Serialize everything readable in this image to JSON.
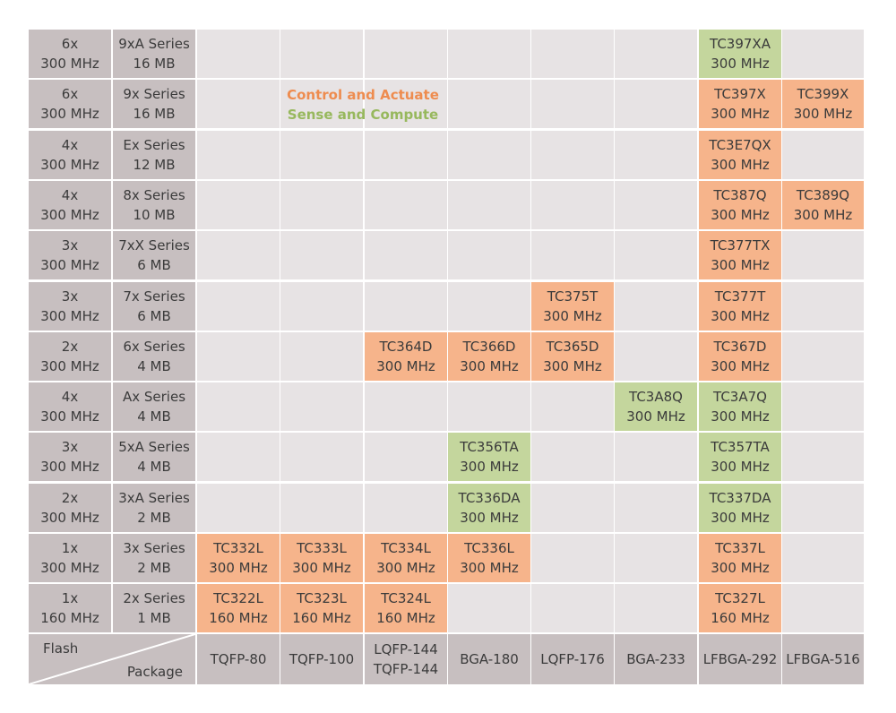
{
  "chart_data": {
    "type": "table",
    "legend": {
      "control": "Control and Actuate",
      "sense": "Sense and Compute"
    },
    "corner": {
      "row_axis": "Flash",
      "col_axis": "Package"
    },
    "packages": [
      [
        "TQFP-80"
      ],
      [
        "TQFP-100"
      ],
      [
        "LQFP-144",
        "TQFP-144"
      ],
      [
        "BGA-180"
      ],
      [
        "LQFP-176"
      ],
      [
        "BGA-233"
      ],
      [
        "LFBGA-292"
      ],
      [
        "LFBGA-516"
      ]
    ],
    "rows": [
      {
        "cores": "6x",
        "freq": "300 MHz",
        "series": "9xA Series",
        "flash": "16 MB",
        "cells": [
          null,
          null,
          null,
          null,
          null,
          null,
          {
            "name": "TC397XA",
            "freq": "300 MHz",
            "type": "sense"
          },
          null
        ]
      },
      {
        "cores": "6x",
        "freq": "300 MHz",
        "series": "9x Series",
        "flash": "16 MB",
        "cells": [
          null,
          null,
          null,
          null,
          null,
          null,
          {
            "name": "TC397X",
            "freq": "300 MHz",
            "type": "control"
          },
          {
            "name": "TC399X",
            "freq": "300 MHz",
            "type": "control"
          }
        ]
      },
      {
        "cores": "4x",
        "freq": "300 MHz",
        "series": "Ex Series",
        "flash": "12 MB",
        "cells": [
          null,
          null,
          null,
          null,
          null,
          null,
          {
            "name": "TC3E7QX",
            "freq": "300 MHz",
            "type": "control"
          },
          null
        ]
      },
      {
        "cores": "4x",
        "freq": "300 MHz",
        "series": "8x Series",
        "flash": "10 MB",
        "cells": [
          null,
          null,
          null,
          null,
          null,
          null,
          {
            "name": "TC387Q",
            "freq": "300 MHz",
            "type": "control"
          },
          {
            "name": "TC389Q",
            "freq": "300 MHz",
            "type": "control"
          }
        ]
      },
      {
        "cores": "3x",
        "freq": "300 MHz",
        "series": "7xX Series",
        "flash": "6 MB",
        "cells": [
          null,
          null,
          null,
          null,
          null,
          null,
          {
            "name": "TC377TX",
            "freq": "300 MHz",
            "type": "control"
          },
          null
        ]
      },
      {
        "cores": "3x",
        "freq": "300 MHz",
        "series": "7x Series",
        "flash": "6 MB",
        "cells": [
          null,
          null,
          null,
          null,
          {
            "name": "TC375T",
            "freq": "300 MHz",
            "type": "control"
          },
          null,
          {
            "name": "TC377T",
            "freq": "300 MHz",
            "type": "control"
          },
          null
        ]
      },
      {
        "cores": "2x",
        "freq": "300 MHz",
        "series": "6x Series",
        "flash": "4 MB",
        "cells": [
          null,
          null,
          {
            "name": "TC364D",
            "freq": "300 MHz",
            "type": "control"
          },
          {
            "name": "TC366D",
            "freq": "300 MHz",
            "type": "control"
          },
          {
            "name": "TC365D",
            "freq": "300 MHz",
            "type": "control"
          },
          null,
          {
            "name": "TC367D",
            "freq": "300 MHz",
            "type": "control"
          },
          null
        ]
      },
      {
        "cores": "4x",
        "freq": "300 MHz",
        "series": "Ax Series",
        "flash": "4 MB",
        "cells": [
          null,
          null,
          null,
          null,
          null,
          {
            "name": "TC3A8Q",
            "freq": "300 MHz",
            "type": "sense"
          },
          {
            "name": "TC3A7Q",
            "freq": "300 MHz",
            "type": "sense"
          },
          null
        ]
      },
      {
        "cores": "3x",
        "freq": "300 MHz",
        "series": "5xA Series",
        "flash": "4 MB",
        "cells": [
          null,
          null,
          null,
          {
            "name": "TC356TA",
            "freq": "300 MHz",
            "type": "sense"
          },
          null,
          null,
          {
            "name": "TC357TA",
            "freq": "300 MHz",
            "type": "sense"
          },
          null
        ]
      },
      {
        "cores": "2x",
        "freq": "300 MHz",
        "series": "3xA Series",
        "flash": "2 MB",
        "cells": [
          null,
          null,
          null,
          {
            "name": "TC336DA",
            "freq": "300 MHz",
            "type": "sense"
          },
          null,
          null,
          {
            "name": "TC337DA",
            "freq": "300 MHz",
            "type": "sense"
          },
          null
        ]
      },
      {
        "cores": "1x",
        "freq": "300 MHz",
        "series": "3x Series",
        "flash": "2 MB",
        "cells": [
          {
            "name": "TC332L",
            "freq": "300 MHz",
            "type": "control"
          },
          {
            "name": "TC333L",
            "freq": "300 MHz",
            "type": "control"
          },
          {
            "name": "TC334L",
            "freq": "300 MHz",
            "type": "control"
          },
          {
            "name": "TC336L",
            "freq": "300 MHz",
            "type": "control"
          },
          null,
          null,
          {
            "name": "TC337L",
            "freq": "300 MHz",
            "type": "control"
          },
          null
        ]
      },
      {
        "cores": "1x",
        "freq": "160 MHz",
        "series": "2x Series",
        "flash": "1 MB",
        "cells": [
          {
            "name": "TC322L",
            "freq": "160 MHz",
            "type": "control"
          },
          {
            "name": "TC323L",
            "freq": "160 MHz",
            "type": "control"
          },
          {
            "name": "TC324L",
            "freq": "160 MHz",
            "type": "control"
          },
          null,
          null,
          null,
          {
            "name": "TC327L",
            "freq": "160 MHz",
            "type": "control"
          },
          null
        ]
      }
    ],
    "colors": {
      "header": "#c7bfc0",
      "empty": "#e7e3e4",
      "control": "#f6b48b",
      "sense": "#c4d69d",
      "legend_control": "#ee8c4f",
      "legend_sense": "#97b85d"
    }
  }
}
